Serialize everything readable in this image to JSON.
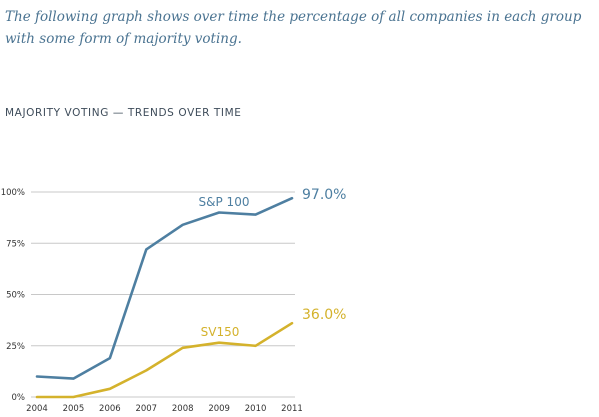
{
  "intro_text": "The following graph shows over time the percentage of all companies in each group with some form of majority voting.",
  "chart_heading": "MAJORITY VOTING — TRENDS OVER TIME",
  "colors": {
    "sp100": "#4e7fa1",
    "sv150": "#d4b22c",
    "grid": "#c8c8c8",
    "text": "#333333"
  },
  "chart_data": {
    "type": "line",
    "title": "MAJORITY VOTING — TRENDS OVER TIME",
    "x": [
      "2004",
      "2005",
      "2006",
      "2007",
      "2008",
      "2009",
      "2010",
      "2011"
    ],
    "ylim": [
      0,
      100
    ],
    "yticks": [
      0,
      25,
      50,
      75,
      100
    ],
    "ytick_labels": [
      "0%",
      "25%",
      "50%",
      "75%",
      "100%"
    ],
    "grid": true,
    "series": [
      {
        "name": "S&P 100",
        "color": "#4e7fa1",
        "values": [
          10,
          9,
          19,
          72,
          84,
          90,
          89,
          97
        ],
        "end_label": "97.0%"
      },
      {
        "name": "SV150",
        "color": "#d4b22c",
        "values": [
          0,
          0,
          4,
          13,
          24,
          26.5,
          25,
          36
        ],
        "end_label": "36.0%"
      }
    ]
  }
}
